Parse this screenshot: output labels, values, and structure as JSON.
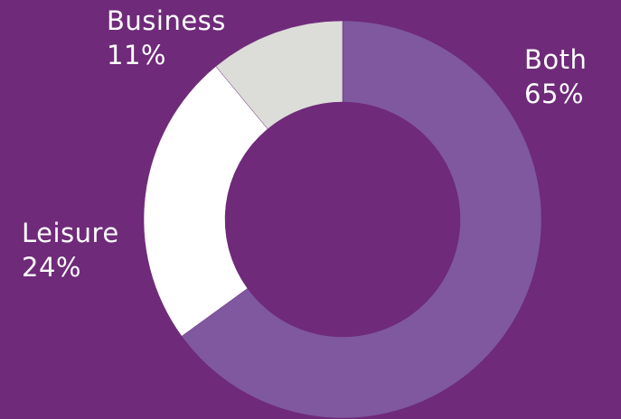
{
  "chart_data": {
    "type": "pie",
    "variant": "donut",
    "slices": [
      {
        "label": "Both",
        "value": 65,
        "value_label": "65%",
        "color": "#7f589f"
      },
      {
        "label": "Leisure",
        "value": 24,
        "value_label": "24%",
        "color": "#ffffff"
      },
      {
        "label": "Business",
        "value": 11,
        "value_label": "11%",
        "color": "#dcdcd8"
      }
    ],
    "start": "top",
    "direction": "clockwise",
    "background_color": "#6f2a7a",
    "legend": "none"
  }
}
